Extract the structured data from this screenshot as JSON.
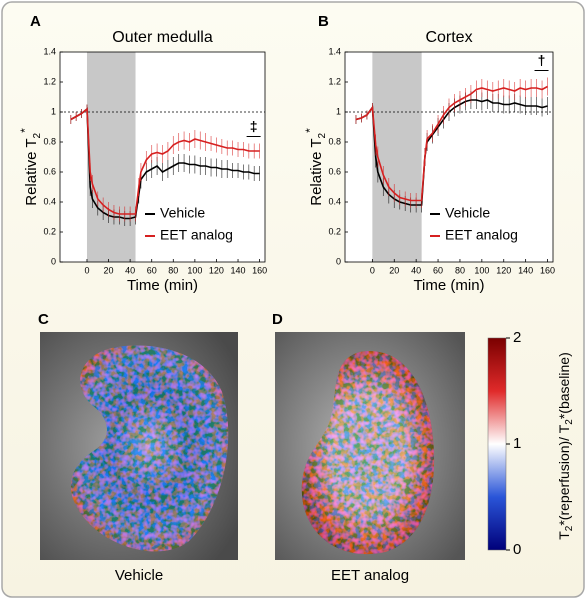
{
  "chart_data": [
    {
      "type": "line",
      "panel_label": "A",
      "title": "Outer medulla",
      "x_label": "Time (min)",
      "y_label": "Relative T",
      "y_label_sub": "2",
      "y_label_sup": "*",
      "xlim": [
        -25,
        165
      ],
      "xticks": [
        0,
        20,
        40,
        60,
        80,
        100,
        120,
        140,
        160
      ],
      "ylim": [
        0,
        1.4
      ],
      "yticks": [
        0,
        0.2,
        0.4,
        0.6,
        0.8,
        1,
        1.2,
        1.4
      ],
      "shaded_x": [
        0,
        45
      ],
      "reference_y": 1,
      "annotation": "‡",
      "legend": "lower right",
      "x": [
        -15,
        -10,
        -5,
        0,
        3,
        5,
        10,
        15,
        20,
        25,
        30,
        35,
        40,
        45,
        48,
        50,
        55,
        60,
        65,
        70,
        75,
        80,
        85,
        90,
        95,
        100,
        105,
        110,
        115,
        120,
        125,
        130,
        135,
        140,
        145,
        150,
        155,
        160
      ],
      "series": [
        {
          "name": "Vehicle",
          "color": "#000000",
          "values": [
            0.95,
            0.97,
            0.99,
            1.02,
            0.5,
            0.42,
            0.36,
            0.33,
            0.31,
            0.3,
            0.3,
            0.29,
            0.29,
            0.3,
            0.45,
            0.55,
            0.6,
            0.62,
            0.64,
            0.6,
            0.62,
            0.64,
            0.66,
            0.66,
            0.65,
            0.65,
            0.64,
            0.64,
            0.63,
            0.63,
            0.62,
            0.62,
            0.61,
            0.61,
            0.6,
            0.6,
            0.59,
            0.59
          ],
          "errors": [
            0.03,
            0.03,
            0.03,
            0.03,
            0.06,
            0.06,
            0.05,
            0.05,
            0.05,
            0.05,
            0.05,
            0.05,
            0.05,
            0.05,
            0.06,
            0.06,
            0.06,
            0.06,
            0.06,
            0.06,
            0.06,
            0.06,
            0.06,
            0.06,
            0.06,
            0.06,
            0.06,
            0.06,
            0.06,
            0.06,
            0.06,
            0.06,
            0.05,
            0.05,
            0.05,
            0.05,
            0.05,
            0.05
          ]
        },
        {
          "name": "EET analog",
          "color": "#d62020",
          "values": [
            0.95,
            0.97,
            0.99,
            1.02,
            0.6,
            0.52,
            0.42,
            0.38,
            0.35,
            0.33,
            0.32,
            0.32,
            0.32,
            0.32,
            0.5,
            0.6,
            0.68,
            0.72,
            0.73,
            0.72,
            0.74,
            0.78,
            0.8,
            0.81,
            0.8,
            0.82,
            0.81,
            0.8,
            0.79,
            0.78,
            0.77,
            0.76,
            0.76,
            0.75,
            0.75,
            0.74,
            0.74,
            0.74
          ],
          "errors": [
            0.03,
            0.03,
            0.03,
            0.03,
            0.06,
            0.06,
            0.05,
            0.05,
            0.05,
            0.05,
            0.05,
            0.05,
            0.05,
            0.05,
            0.06,
            0.06,
            0.06,
            0.06,
            0.06,
            0.06,
            0.06,
            0.06,
            0.06,
            0.06,
            0.06,
            0.06,
            0.06,
            0.06,
            0.05,
            0.05,
            0.05,
            0.05,
            0.05,
            0.05,
            0.05,
            0.05,
            0.05,
            0.05
          ]
        }
      ]
    },
    {
      "type": "line",
      "panel_label": "B",
      "title": "Cortex",
      "x_label": "Time (min)",
      "y_label": "Relative T",
      "y_label_sub": "2",
      "y_label_sup": "*",
      "xlim": [
        -25,
        165
      ],
      "xticks": [
        0,
        20,
        40,
        60,
        80,
        100,
        120,
        140,
        160
      ],
      "ylim": [
        0,
        1.4
      ],
      "yticks": [
        0,
        0.2,
        0.4,
        0.6,
        0.8,
        1,
        1.2,
        1.4
      ],
      "shaded_x": [
        0,
        45
      ],
      "reference_y": 1,
      "annotation": "†",
      "legend": "lower right",
      "x": [
        -15,
        -10,
        -5,
        0,
        3,
        5,
        10,
        15,
        20,
        25,
        30,
        35,
        40,
        45,
        48,
        50,
        55,
        60,
        65,
        70,
        75,
        80,
        85,
        90,
        95,
        100,
        105,
        110,
        115,
        120,
        125,
        130,
        135,
        140,
        145,
        150,
        155,
        160
      ],
      "series": [
        {
          "name": "Vehicle",
          "color": "#000000",
          "values": [
            0.95,
            0.96,
            0.98,
            1.03,
            0.7,
            0.6,
            0.5,
            0.45,
            0.42,
            0.4,
            0.39,
            0.38,
            0.38,
            0.38,
            0.7,
            0.8,
            0.85,
            0.9,
            0.95,
            1.0,
            1.03,
            1.05,
            1.07,
            1.08,
            1.08,
            1.07,
            1.08,
            1.06,
            1.06,
            1.05,
            1.05,
            1.06,
            1.05,
            1.04,
            1.04,
            1.04,
            1.03,
            1.04
          ],
          "errors": [
            0.03,
            0.03,
            0.03,
            0.03,
            0.07,
            0.07,
            0.06,
            0.06,
            0.06,
            0.05,
            0.05,
            0.05,
            0.05,
            0.05,
            0.06,
            0.06,
            0.06,
            0.06,
            0.06,
            0.06,
            0.06,
            0.06,
            0.06,
            0.06,
            0.06,
            0.06,
            0.06,
            0.06,
            0.06,
            0.06,
            0.06,
            0.06,
            0.06,
            0.06,
            0.06,
            0.06,
            0.06,
            0.06
          ]
        },
        {
          "name": "EET analog",
          "color": "#d62020",
          "values": [
            0.95,
            0.96,
            0.98,
            1.03,
            0.78,
            0.7,
            0.58,
            0.5,
            0.46,
            0.43,
            0.42,
            0.41,
            0.41,
            0.41,
            0.7,
            0.82,
            0.86,
            0.92,
            0.98,
            1.03,
            1.06,
            1.08,
            1.1,
            1.12,
            1.15,
            1.16,
            1.15,
            1.14,
            1.15,
            1.16,
            1.15,
            1.14,
            1.16,
            1.15,
            1.16,
            1.16,
            1.15,
            1.17
          ],
          "errors": [
            0.03,
            0.03,
            0.03,
            0.03,
            0.07,
            0.07,
            0.06,
            0.06,
            0.06,
            0.05,
            0.05,
            0.05,
            0.05,
            0.05,
            0.06,
            0.06,
            0.06,
            0.06,
            0.06,
            0.06,
            0.06,
            0.06,
            0.06,
            0.06,
            0.06,
            0.06,
            0.06,
            0.06,
            0.06,
            0.06,
            0.06,
            0.06,
            0.06,
            0.06,
            0.06,
            0.06,
            0.06,
            0.06
          ]
        }
      ]
    }
  ],
  "images": [
    {
      "panel_label": "C",
      "caption": "Vehicle"
    },
    {
      "panel_label": "D",
      "caption": "EET analog"
    }
  ],
  "colorbar": {
    "lim": [
      0,
      2
    ],
    "ticks": [
      0,
      1,
      2
    ],
    "label_parts": [
      "T",
      "2",
      "*(reperfusion)/ T",
      "2",
      "*(baseline)"
    ]
  }
}
